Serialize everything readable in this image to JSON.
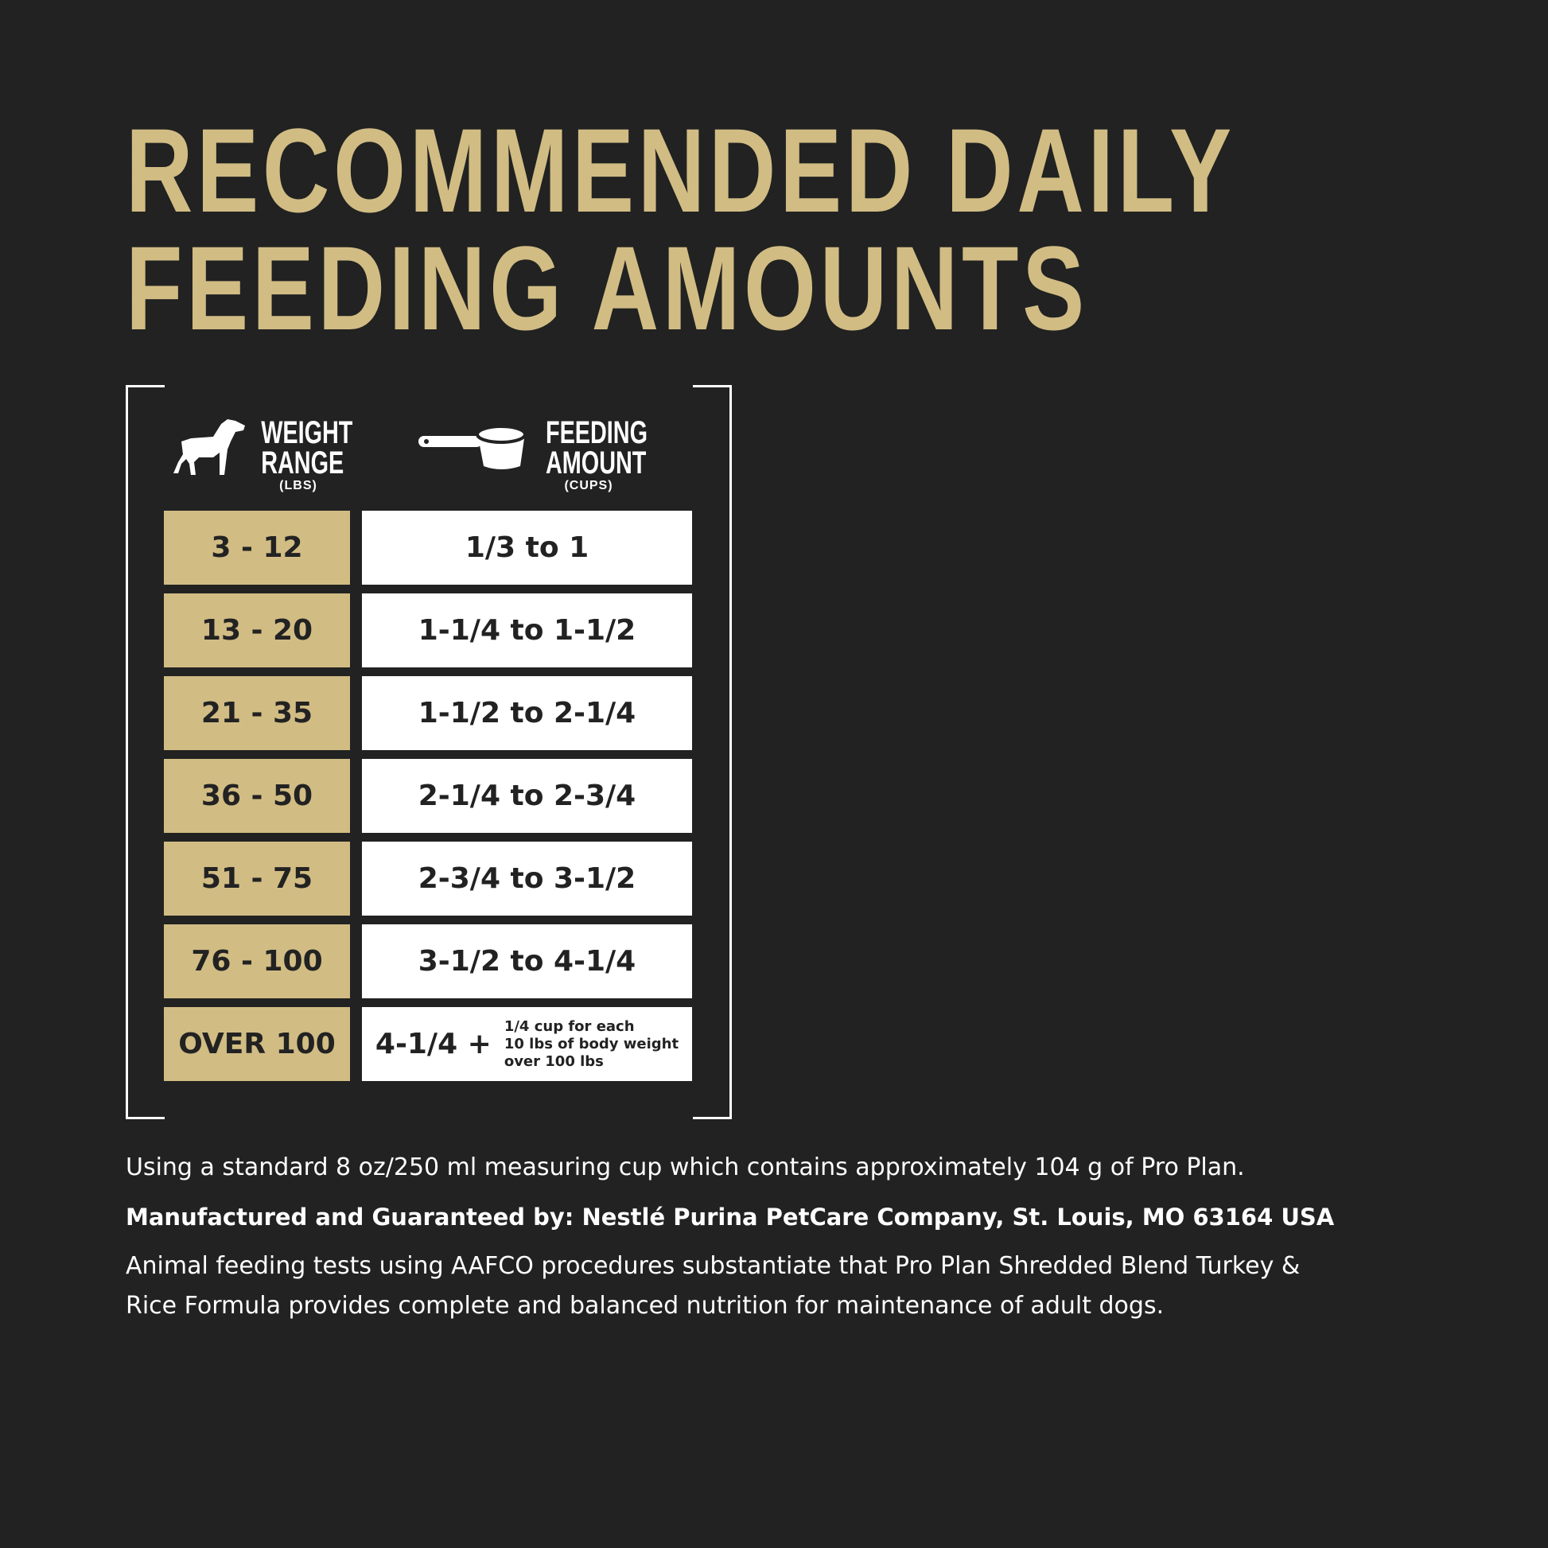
{
  "title": {
    "line1": "RECOMMENDED DAILY",
    "line2": "FEEDING AMOUNTS"
  },
  "colors": {
    "background": "#212221",
    "gold": "#d1bc84",
    "white": "#ffffff"
  },
  "table": {
    "weight_header": {
      "line1": "WEIGHT",
      "line2": "RANGE",
      "unit": "(LBS)",
      "icon": "dog-icon"
    },
    "feeding_header": {
      "line1": "FEEDING",
      "line2": "AMOUNT",
      "unit": "(CUPS)",
      "icon": "measuring-cup-icon"
    },
    "rows": [
      {
        "weight": "3 - 12",
        "amount": "1/3 to 1"
      },
      {
        "weight": "13 - 20",
        "amount": "1-1/4 to 1-1/2"
      },
      {
        "weight": "21 - 35",
        "amount": "1-1/2 to 2-1/4"
      },
      {
        "weight": "36 - 50",
        "amount": "2-1/4 to 2-3/4"
      },
      {
        "weight": "51 - 75",
        "amount": "2-3/4 to 3-1/2"
      },
      {
        "weight": "76 - 100",
        "amount": "3-1/2 to 4-1/4"
      },
      {
        "weight": "OVER 100",
        "amount": "4-1/4 +",
        "note": [
          "1/4 cup for each",
          "10 lbs of body weight",
          "over 100 lbs"
        ]
      }
    ]
  },
  "footer": {
    "cup_note": "Using a standard 8 oz/250 ml measuring cup which contains approximately 104 g of Pro Plan.",
    "manufacturer": "Manufactured and Guaranteed by: Nestlé Purina PetCare Company, St. Louis, MO 63164 USA",
    "aafco_line1": "Animal feeding tests using AAFCO procedures substantiate that Pro Plan Shredded Blend Turkey &",
    "aafco_line2": "Rice Formula provides complete and balanced nutrition for maintenance of adult dogs."
  }
}
